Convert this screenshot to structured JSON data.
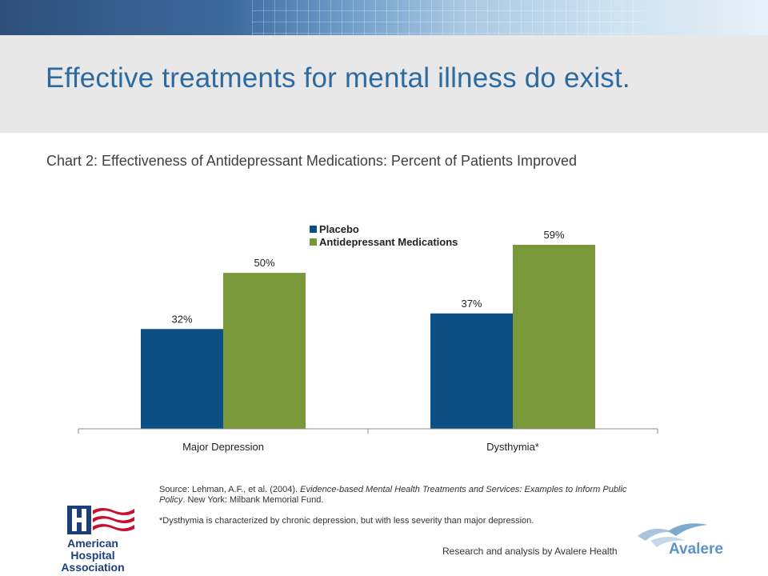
{
  "page": {
    "title": "Effective treatments for mental illness do exist.",
    "chart_title": "Chart 2:  Effectiveness of Antidepressant Medications: Percent of Patients Improved",
    "source_prefix": "Source: Lehman, A.F., et al. (2004). ",
    "source_italic": "Evidence-based Mental Health Treatments and Services: Examples to Inform Public Policy",
    "source_suffix": ". New York: Milbank Memorial Fund.",
    "footnote": "*Dysthymia is characterized by chronic depression, but with less severity than major depression.",
    "research_credit": "Research and analysis by Avalere Health",
    "aha_logo_text": "American Hospital Association",
    "avalere_logo_text": "Avalere"
  },
  "colors": {
    "placebo": "#0b4f84",
    "medication": "#78983a",
    "title": "#2c6aa0"
  },
  "chart_data": {
    "type": "bar",
    "title": "Chart 2:  Effectiveness of Antidepressant Medications: Percent of Patients Improved",
    "categories": [
      "Major Depression",
      "Dysthymia*"
    ],
    "series": [
      {
        "name": "Placebo",
        "values": [
          32,
          37
        ],
        "labels": [
          "32%",
          "37%"
        ]
      },
      {
        "name": "Antidepressant Medications",
        "values": [
          50,
          59
        ],
        "labels": [
          "50%",
          "59%"
        ]
      }
    ],
    "ylim": [
      0,
      60
    ],
    "grid": false,
    "legend_position": "top"
  }
}
